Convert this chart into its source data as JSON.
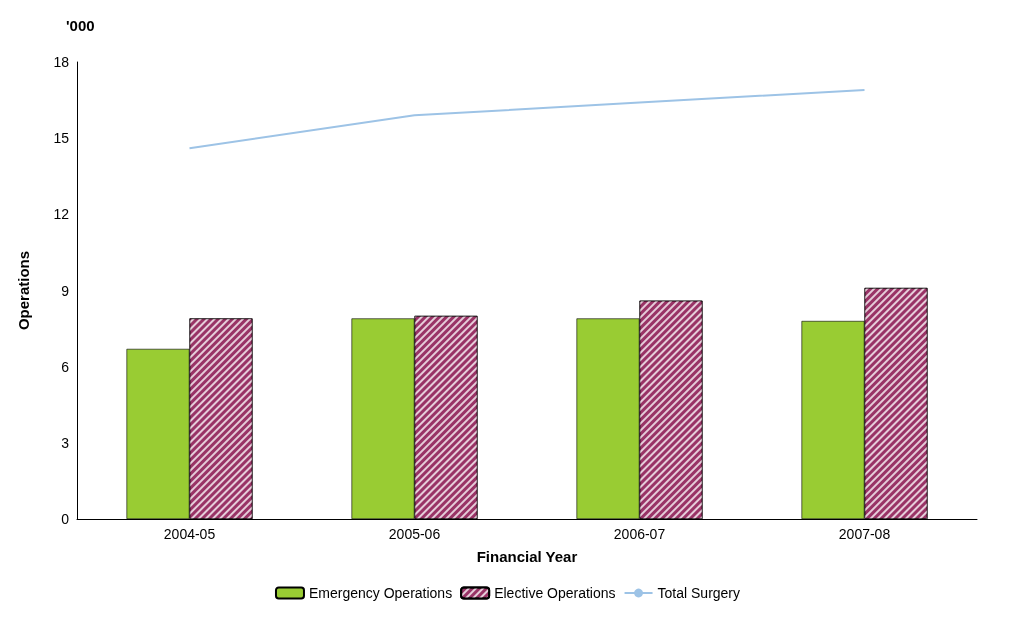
{
  "chart_data": {
    "type": "bar",
    "xlabel": "Financial Year",
    "ylabel": "Operations",
    "annotations": [
      "'000"
    ],
    "categories": [
      "2004-05",
      "2005-06",
      "2006-07",
      "2007-08"
    ],
    "series": [
      {
        "name": "Emergency Operations",
        "color": "#99cc33",
        "values": [
          6.7,
          7.9,
          7.9,
          7.8
        ]
      },
      {
        "name": "Elective Operations",
        "color": "#993366",
        "values": [
          7.9,
          8.0,
          8.6,
          9.1
        ]
      },
      {
        "name": "Total Surgery",
        "type": "line",
        "color": "#9dc3e6",
        "values": [
          14.6,
          15.9,
          16.4,
          16.9
        ]
      }
    ],
    "ylim": [
      0,
      18
    ],
    "yticks": [
      0,
      3,
      6,
      9,
      12,
      15,
      18
    ],
    "grid": false,
    "legend": "bottom",
    "marker": "none",
    "line_style": "solid"
  }
}
